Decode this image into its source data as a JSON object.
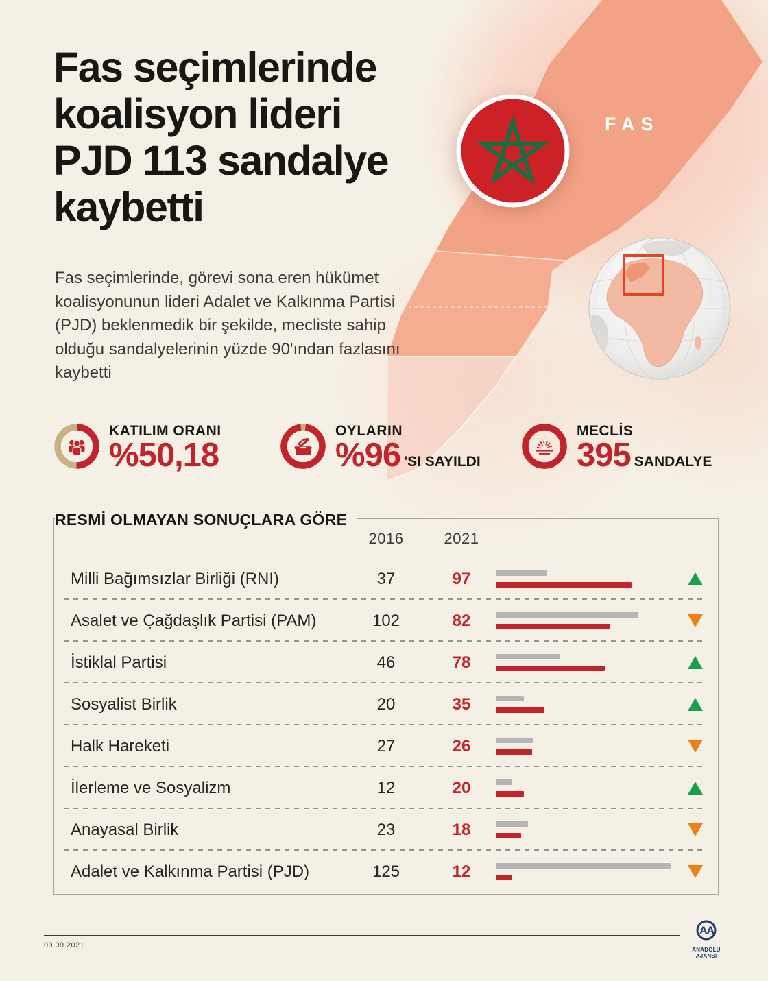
{
  "header": {
    "title_lines": [
      "Fas seçimlerinde",
      "koalisyon lideri",
      "PJD 113 sandalye",
      "kaybetti"
    ],
    "paragraph": "Fas seçimlerinde, görevi sona eren hükümet koalisyonunun lideri Adalet ve Kalkınma Partisi (PJD) beklenmedik bir şekilde, mecliste sahip olduğu sandalyelerinin yüzde 90'ından fazlasını kaybetti"
  },
  "map": {
    "country_label": "FAS"
  },
  "stats": [
    {
      "label": "KATILIM ORANI",
      "value": "%50,18",
      "suffix": "",
      "percent": 50.18,
      "icon": "people-icon"
    },
    {
      "label": "OYLARIN",
      "value": "%96",
      "suffix": "'SI SAYILDI",
      "percent": 96,
      "icon": "ballot-box-icon"
    },
    {
      "label": "MECLİS",
      "value": "395",
      "suffix": "SANDALYE",
      "percent": 100,
      "icon": "parliament-icon"
    }
  ],
  "results": {
    "section_title": "RESMİ OLMAYAN SONUÇLARA GÖRE",
    "col_2016": "2016",
    "col_2021": "2021",
    "rows": [
      {
        "party": "Milli Bağımsızlar Birliği (RNI)",
        "v2016": 37,
        "v2021": 97,
        "direction": "up"
      },
      {
        "party": "Asalet ve Çağdaşlık Partisi (PAM)",
        "v2016": 102,
        "v2021": 82,
        "direction": "down"
      },
      {
        "party": "İstiklal Partisi",
        "v2016": 46,
        "v2021": 78,
        "direction": "up"
      },
      {
        "party": "Sosyalist Birlik",
        "v2016": 20,
        "v2021": 35,
        "direction": "up"
      },
      {
        "party": "Halk Hareketi",
        "v2016": 27,
        "v2021": 26,
        "direction": "down"
      },
      {
        "party": "İlerleme ve Sosyalizm",
        "v2016": 12,
        "v2021": 20,
        "direction": "up"
      },
      {
        "party": "Anayasal Birlik",
        "v2016": 23,
        "v2021": 18,
        "direction": "down"
      },
      {
        "party": "Adalet ve Kalkınma Partisi (PJD)",
        "v2016": 125,
        "v2021": 12,
        "direction": "down"
      }
    ]
  },
  "footer": {
    "date": "09.09.2021",
    "agency": "ANADOLU AJANSI",
    "logo_monogram": "AA"
  },
  "colors": {
    "red": "#c2242c",
    "tan": "#c8b284",
    "gray_bar": "#b5b4b6",
    "green_up": "#1b9e4e",
    "orange_down": "#f08012",
    "ink": "#171714",
    "cream": "#f5f0e6",
    "salmon_map": "#f2a285",
    "pink_wash": "#f8d8c8",
    "navy": "#1e3c6e",
    "flag_red": "#cb2127",
    "flag_green": "#156f3f"
  },
  "chart_data": {
    "type": "bar",
    "title": "RESMİ OLMAYAN SONUÇLARA GÖRE",
    "subtitle": "Fas seçimlerinde koalisyon lideri PJD 113 sandalye kaybetti",
    "categories": [
      "Milli Bağımsızlar Birliği (RNI)",
      "Asalet ve Çağdaşlık Partisi (PAM)",
      "İstiklal Partisi",
      "Sosyalist Birlik",
      "Halk Hareketi",
      "İlerleme ve Sosyalizm",
      "Anayasal Birlik",
      "Adalet ve Kalkınma Partisi (PJD)"
    ],
    "series": [
      {
        "name": "2016",
        "values": [
          37,
          102,
          46,
          20,
          27,
          12,
          23,
          125
        ]
      },
      {
        "name": "2021",
        "values": [
          97,
          82,
          78,
          35,
          26,
          20,
          18,
          12
        ]
      }
    ],
    "trend": [
      "up",
      "down",
      "up",
      "up",
      "down",
      "up",
      "down",
      "down"
    ],
    "xlim": [
      0,
      125
    ],
    "legend_position": "column-headers",
    "grid": false,
    "kpis": [
      {
        "label": "KATILIM ORANI",
        "value": 50.18,
        "unit": "%"
      },
      {
        "label": "OYLARIN SAYILAN KISMI",
        "value": 96,
        "unit": "%"
      },
      {
        "label": "MECLİS SANDALYE",
        "value": 395,
        "unit": "sandalye"
      }
    ]
  }
}
